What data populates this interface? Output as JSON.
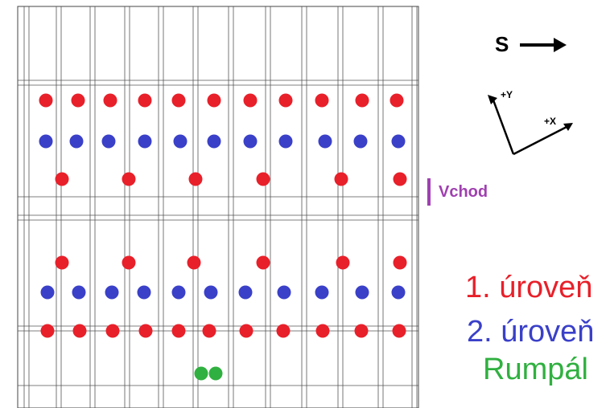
{
  "compass": {
    "north_label": "S",
    "y_axis_label": "+Y",
    "x_axis_label": "+X"
  },
  "entrance_label": "Vchod",
  "legend": {
    "level_1": "1. úroveň",
    "level_2": "2. úroveň",
    "winch": "Rumpál"
  }
}
